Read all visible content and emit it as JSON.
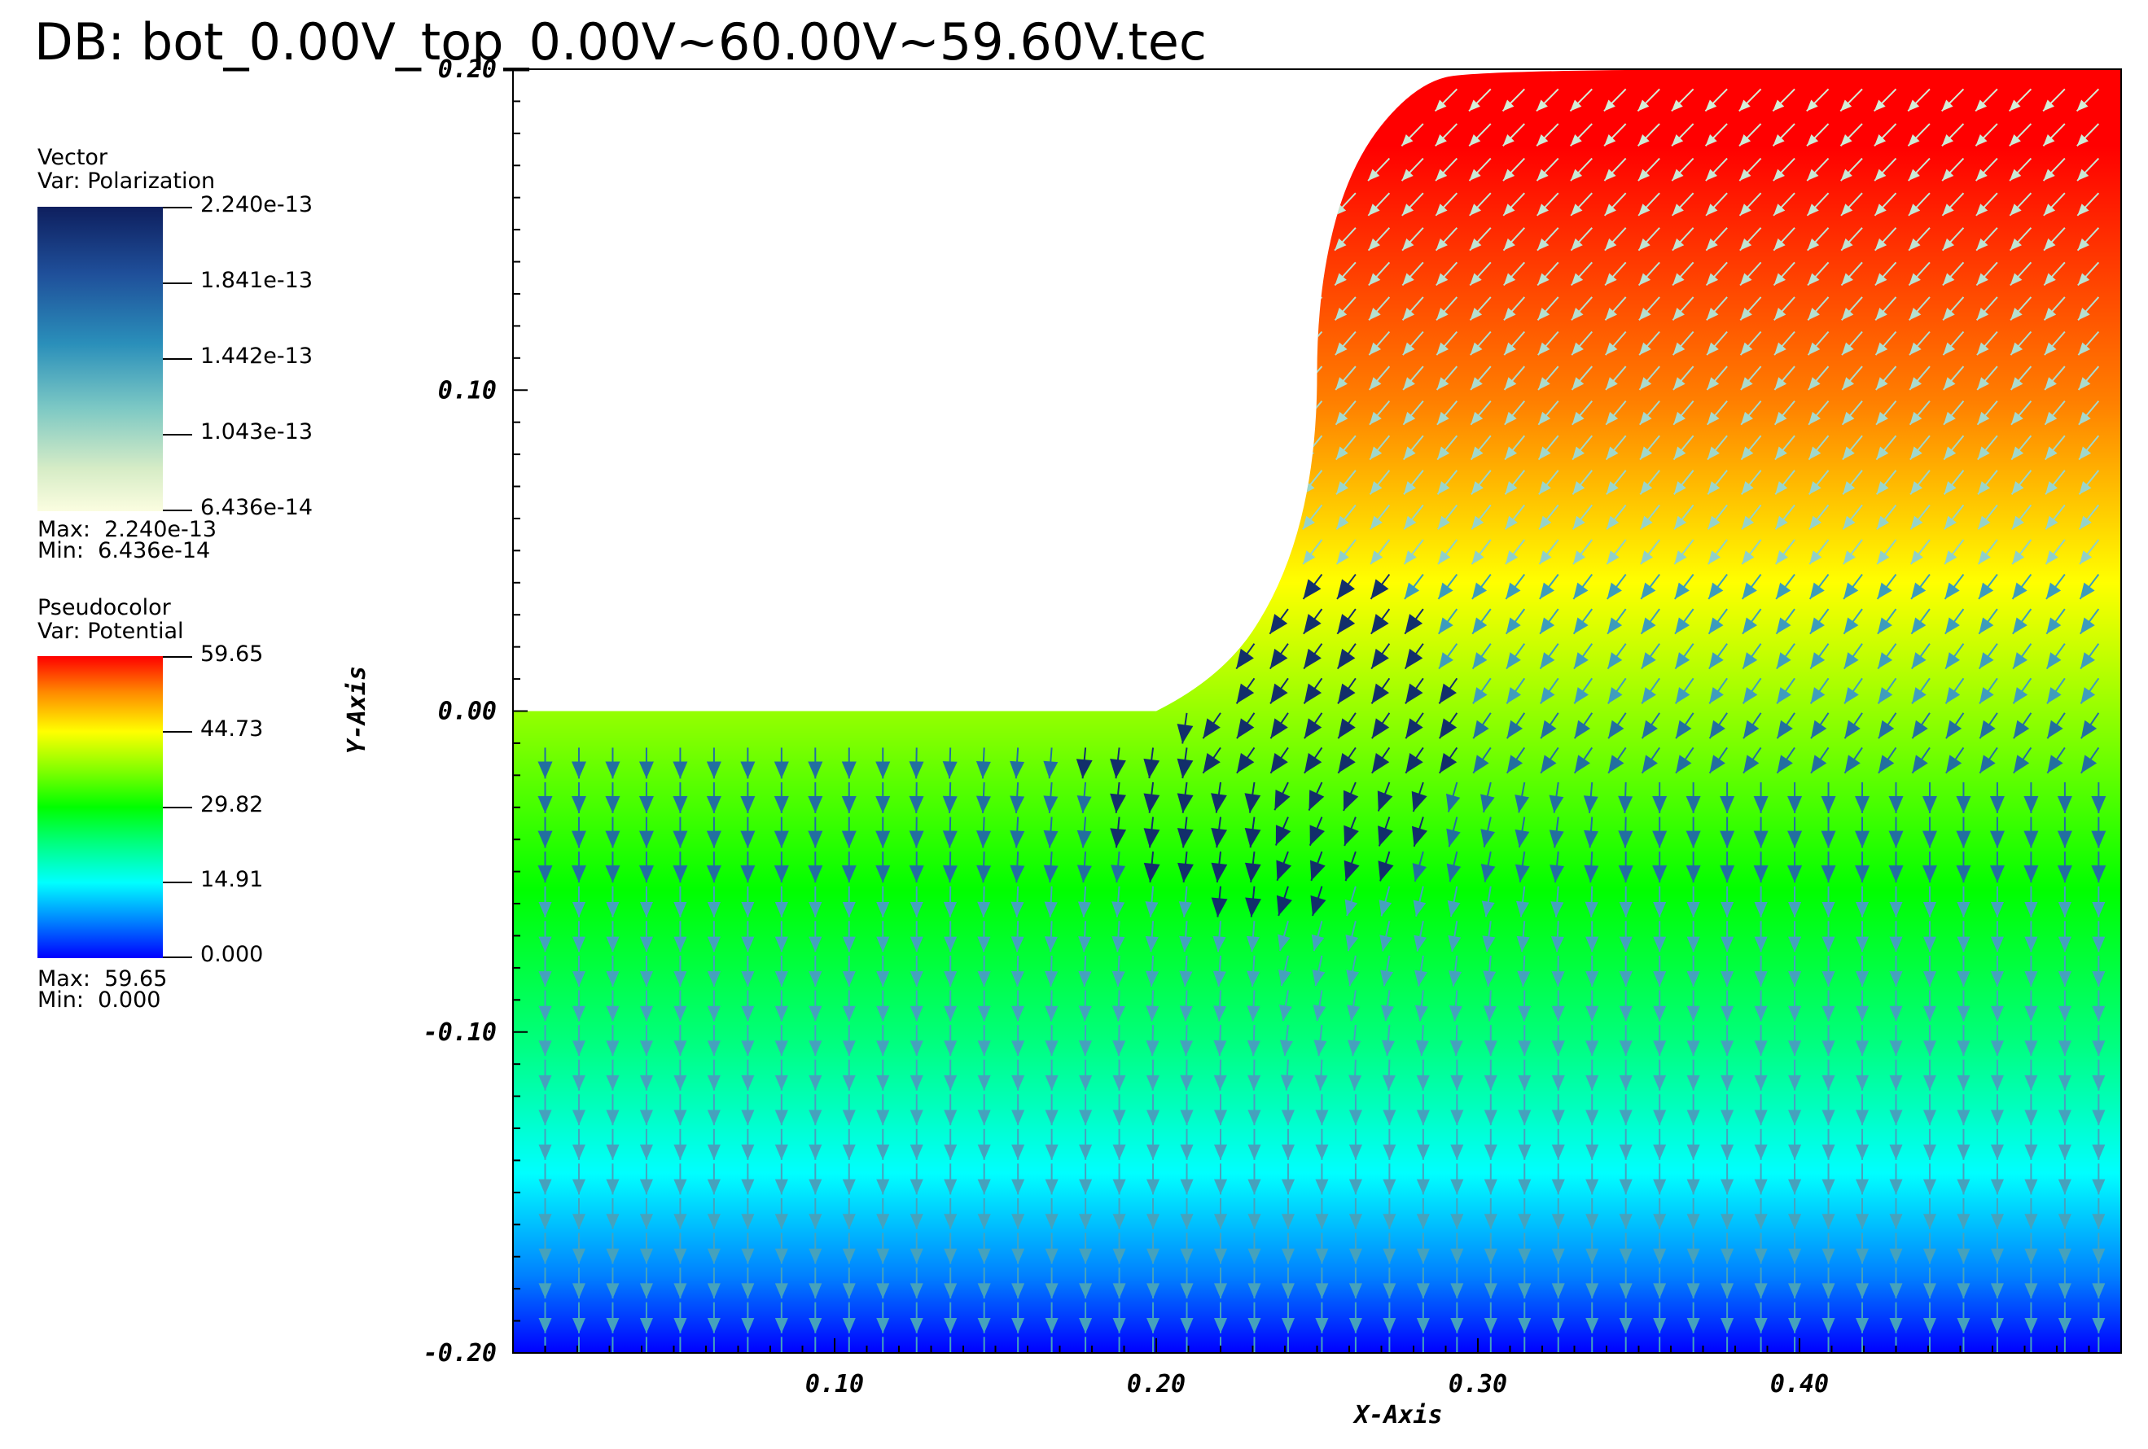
{
  "title": "DB: bot_0.00V_top_0.00V~60.00V~59.60V.tec",
  "vector_legend": {
    "heading1": "Vector",
    "heading2": "Var: Polarization",
    "ticks": [
      "2.240e-13",
      "1.841e-13",
      "1.442e-13",
      "1.043e-13",
      "6.436e-14"
    ],
    "max_text": "Max:  2.240e-13",
    "min_text": "Min:  6.436e-14",
    "max": 2.24e-13,
    "min": 6.436e-14
  },
  "pseudocolor_legend": {
    "heading1": "Pseudocolor",
    "heading2": "Var: Potential",
    "ticks": [
      "59.65",
      "44.73",
      "29.82",
      "14.91",
      "0.000"
    ],
    "max_text": "Max:  59.65",
    "min_text": "Min:  0.000",
    "max": 59.65,
    "min": 0.0
  },
  "chart_data": {
    "type": "heatmap",
    "description_type": "pseudocolor potential field with polarization vector glyphs",
    "xlabel": "X-Axis",
    "ylabel": "Y-Axis",
    "xlim": [
      0.0,
      0.5
    ],
    "ylim": [
      -0.2,
      0.2
    ],
    "xticks": [
      "0.10",
      "0.20",
      "0.30",
      "0.40"
    ],
    "xtick_values": [
      0.1,
      0.2,
      0.3,
      0.4
    ],
    "yticks": [
      "0.10",
      "0.00",
      "-0.10",
      "-0.20"
    ],
    "ytick_values": [
      0.1,
      0.0,
      -0.1,
      -0.2
    ],
    "top_tick_label": "0.20",
    "domain_boundary": [
      [
        0.0,
        0.0
      ],
      [
        0.2,
        0.0
      ],
      [
        0.22,
        0.01
      ],
      [
        0.24,
        0.04
      ],
      [
        0.25,
        0.08
      ],
      [
        0.25,
        0.13
      ],
      [
        0.26,
        0.17
      ],
      [
        0.28,
        0.195
      ],
      [
        0.3,
        0.2
      ],
      [
        0.5,
        0.2
      ]
    ],
    "potential_range": [
      0.0,
      59.65
    ],
    "polarization_range": [
      6.436e-14,
      2.24e-13
    ]
  }
}
